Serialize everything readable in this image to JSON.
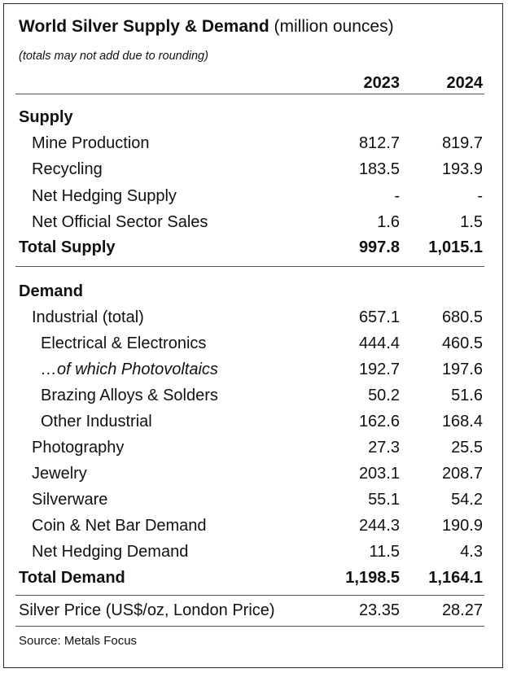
{
  "chart_data": {
    "type": "table",
    "title": "World Silver Supply & Demand",
    "title_unit": "(million ounces)",
    "subtitle": "(totals may not add due to rounding)",
    "columns": [
      "2023",
      "2024"
    ],
    "sections": {
      "supply": {
        "heading": "Supply",
        "rows": [
          {
            "label": "Mine Production",
            "values": [
              "812.7",
              "819.7"
            ]
          },
          {
            "label": "Recycling",
            "values": [
              "183.5",
              "193.9"
            ]
          },
          {
            "label": "Net Hedging Supply",
            "values": [
              "-",
              "-"
            ]
          },
          {
            "label": "Net Official Sector Sales",
            "values": [
              "1.6",
              "1.5"
            ]
          }
        ],
        "total": {
          "label": "Total Supply",
          "values": [
            "997.8",
            "1,015.1"
          ]
        }
      },
      "demand": {
        "heading": "Demand",
        "rows": [
          {
            "label": "Industrial (total)",
            "values": [
              "657.1",
              "680.5"
            ]
          },
          {
            "label": "Electrical & Electronics",
            "values": [
              "444.4",
              "460.5"
            ]
          },
          {
            "label": "…of which Photovoltaics",
            "values": [
              "192.7",
              "197.6"
            ]
          },
          {
            "label": "Brazing Alloys & Solders",
            "values": [
              "50.2",
              "51.6"
            ]
          },
          {
            "label": "Other Industrial",
            "values": [
              "162.6",
              "168.4"
            ]
          },
          {
            "label": "Photography",
            "values": [
              "27.3",
              "25.5"
            ]
          },
          {
            "label": "Jewelry",
            "values": [
              "203.1",
              "208.7"
            ]
          },
          {
            "label": "Silverware",
            "values": [
              "55.1",
              "54.2"
            ]
          },
          {
            "label": "Coin & Net Bar Demand",
            "values": [
              "244.3",
              "190.9"
            ]
          },
          {
            "label": "Net Hedging Demand",
            "values": [
              "11.5",
              "4.3"
            ]
          }
        ],
        "total": {
          "label": "Total Demand",
          "values": [
            "1,198.5",
            "1,164.1"
          ]
        }
      }
    },
    "price": {
      "label": "Silver Price (US$/oz, London Price)",
      "values": [
        "23.35",
        "28.27"
      ]
    },
    "source": "Source: Metals Focus"
  }
}
